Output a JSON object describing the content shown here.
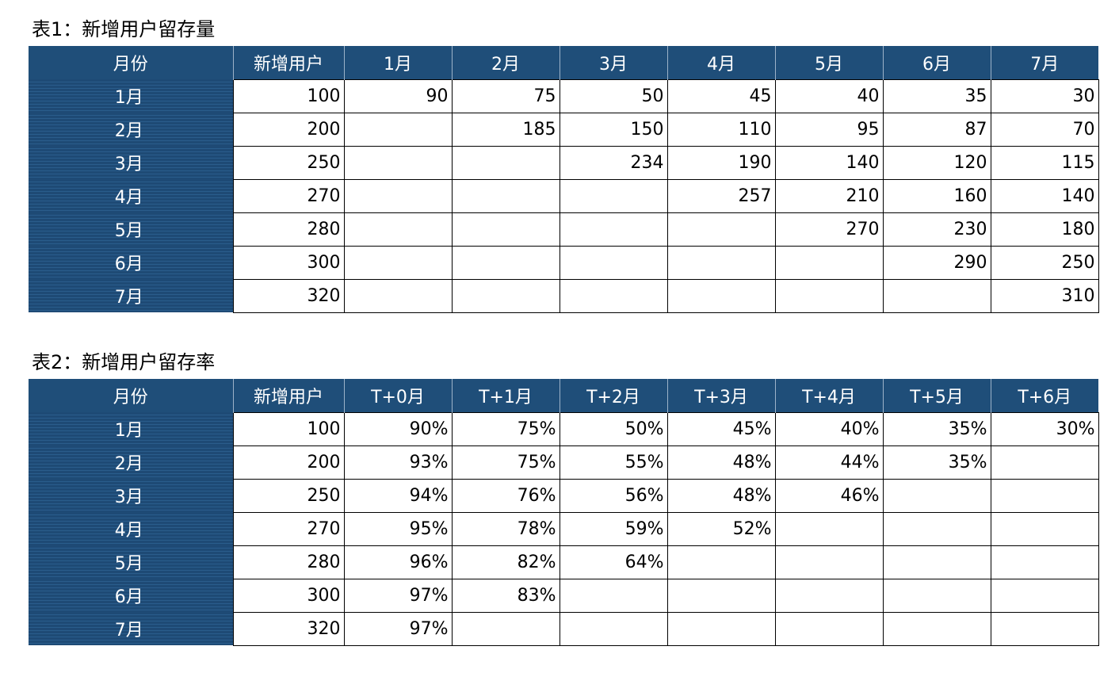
{
  "table1": {
    "caption": "表1：新增用户留存量",
    "headers": [
      "月份",
      "新增用户",
      "1月",
      "2月",
      "3月",
      "4月",
      "5月",
      "6月",
      "7月"
    ],
    "rows": [
      {
        "month": "1月",
        "new_users": "100",
        "values": [
          "90",
          "75",
          "50",
          "45",
          "40",
          "35",
          "30"
        ]
      },
      {
        "month": "2月",
        "new_users": "200",
        "values": [
          "",
          "185",
          "150",
          "110",
          "95",
          "87",
          "70"
        ]
      },
      {
        "month": "3月",
        "new_users": "250",
        "values": [
          "",
          "",
          "234",
          "190",
          "140",
          "120",
          "115"
        ]
      },
      {
        "month": "4月",
        "new_users": "270",
        "values": [
          "",
          "",
          "",
          "257",
          "210",
          "160",
          "140"
        ]
      },
      {
        "month": "5月",
        "new_users": "280",
        "values": [
          "",
          "",
          "",
          "",
          "270",
          "230",
          "180"
        ]
      },
      {
        "month": "6月",
        "new_users": "300",
        "values": [
          "",
          "",
          "",
          "",
          "",
          "290",
          "250"
        ]
      },
      {
        "month": "7月",
        "new_users": "320",
        "values": [
          "",
          "",
          "",
          "",
          "",
          "",
          "310"
        ]
      }
    ]
  },
  "table2": {
    "caption": "表2：新增用户留存率",
    "headers": [
      "月份",
      "新增用户",
      "T+0月",
      "T+1月",
      "T+2月",
      "T+3月",
      "T+4月",
      "T+5月",
      "T+6月"
    ],
    "rows": [
      {
        "month": "1月",
        "new_users": "100",
        "values": [
          "90%",
          "75%",
          "50%",
          "45%",
          "40%",
          "35%",
          "30%"
        ]
      },
      {
        "month": "2月",
        "new_users": "200",
        "values": [
          "93%",
          "75%",
          "55%",
          "48%",
          "44%",
          "35%",
          ""
        ]
      },
      {
        "month": "3月",
        "new_users": "250",
        "values": [
          "94%",
          "76%",
          "56%",
          "48%",
          "46%",
          "",
          ""
        ]
      },
      {
        "month": "4月",
        "new_users": "270",
        "values": [
          "95%",
          "78%",
          "59%",
          "52%",
          "",
          "",
          ""
        ]
      },
      {
        "month": "5月",
        "new_users": "280",
        "values": [
          "96%",
          "82%",
          "64%",
          "",
          "",
          "",
          ""
        ]
      },
      {
        "month": "6月",
        "new_users": "300",
        "values": [
          "97%",
          "83%",
          "",
          "",
          "",
          "",
          ""
        ]
      },
      {
        "month": "7月",
        "new_users": "320",
        "values": [
          "97%",
          "",
          "",
          "",
          "",
          "",
          ""
        ]
      }
    ]
  },
  "colors": {
    "header_bg": "#1f4e79",
    "header_text": "#ffffff",
    "month_cell_bg": "#1e4a75"
  }
}
